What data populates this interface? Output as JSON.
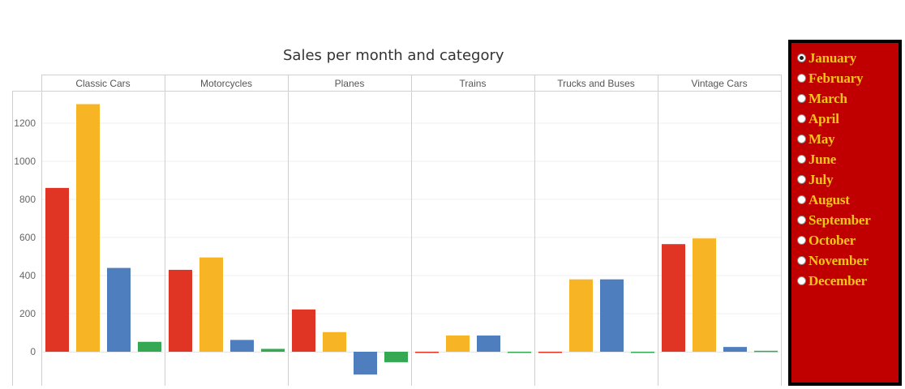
{
  "chart_data": {
    "type": "bar",
    "title": "Sales per month and category",
    "categories": [
      "Classic Cars",
      "Motorcycles",
      "Planes",
      "Trains",
      "Trucks and Buses",
      "Vintage Cars"
    ],
    "series": [
      {
        "color": "#e03425",
        "values": [
          860,
          430,
          222,
          -3,
          -3,
          565
        ]
      },
      {
        "color": "#f7b425",
        "values": [
          1300,
          495,
          103,
          85,
          380,
          595
        ]
      },
      {
        "color": "#4f7ebf",
        "values": [
          440,
          62,
          -120,
          85,
          380,
          25
        ]
      },
      {
        "color": "#34a853",
        "values": [
          52,
          15,
          -55,
          -2,
          -3,
          5
        ]
      }
    ],
    "yticks": [
      0,
      200,
      400,
      600,
      800,
      1000,
      1200
    ],
    "ylim": [
      -180,
      1370
    ],
    "grid": true,
    "xlabel": "",
    "ylabel": ""
  },
  "month_filter": {
    "options": [
      "January",
      "February",
      "March",
      "April",
      "May",
      "June",
      "July",
      "August",
      "September",
      "October",
      "November",
      "December"
    ],
    "selected": "January"
  }
}
